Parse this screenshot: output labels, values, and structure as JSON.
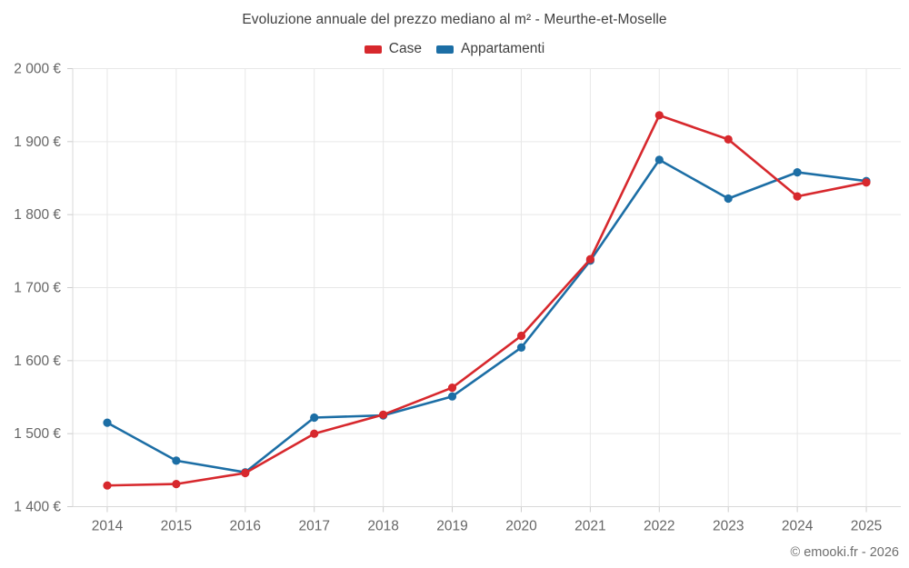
{
  "title": "Evoluzione annuale del prezzo mediano al m² - Meurthe-et-Moselle",
  "attribution": "© emooki.fr - 2026",
  "colors": {
    "case_red": "#d7282d",
    "appartamenti_blue": "#1c6ea5",
    "grid": "#e7e7e7",
    "axis": "#d8d8d8",
    "tick": "#cccccc",
    "axis_label": "#666666",
    "title_text": "#404040"
  },
  "legend": {
    "items": [
      {
        "label": "Case",
        "color": "#d7282d"
      },
      {
        "label": "Appartamenti",
        "color": "#1c6ea5"
      }
    ]
  },
  "chart_data": {
    "type": "line",
    "title": "Evoluzione annuale del prezzo mediano al m² - Meurthe-et-Moselle",
    "categories": [
      "2014",
      "2015",
      "2016",
      "2017",
      "2018",
      "2019",
      "2020",
      "2021",
      "2022",
      "2023",
      "2024",
      "2025"
    ],
    "series": [
      {
        "name": "Case",
        "color": "#d7282d",
        "values": [
          1429,
          1431,
          1446,
          1500,
          1526,
          1563,
          1634,
          1739,
          1936,
          1903,
          1825,
          1844
        ]
      },
      {
        "name": "Appartamenti",
        "color": "#1c6ea5",
        "values": [
          1515,
          1463,
          1447,
          1522,
          1525,
          1551,
          1618,
          1737,
          1875,
          1822,
          1858,
          1846
        ]
      }
    ],
    "xlabel": "",
    "ylabel": "",
    "ylim": [
      1400,
      2000
    ],
    "ytick_step": 100,
    "ytick_labels": [
      "1 400 €",
      "1 500 €",
      "1 600 €",
      "1 700 €",
      "1 800 €",
      "1 900 €",
      "2 000 €"
    ],
    "grid": true,
    "legend_position": "top"
  }
}
